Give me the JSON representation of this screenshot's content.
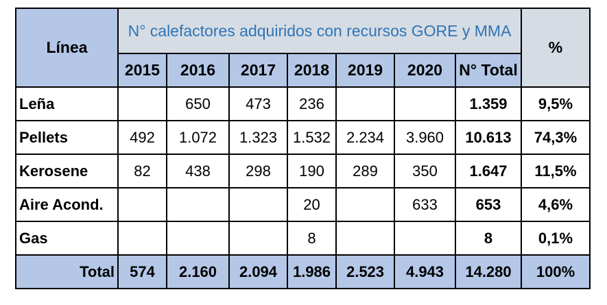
{
  "table": {
    "linea_header": "Línea",
    "title": "N° calefactores adquiridos con recursos  GORE y MMA",
    "pct_header": "%",
    "years": [
      "2015",
      "2016",
      "2017",
      "2018",
      "2019",
      "2020"
    ],
    "total_header": "N° Total",
    "rows": [
      {
        "label": "Leña",
        "values": [
          "",
          "650",
          "473",
          "236",
          "",
          ""
        ],
        "total": "1.359",
        "pct": "9,5%"
      },
      {
        "label": "Pellets",
        "values": [
          "492",
          "1.072",
          "1.323",
          "1.532",
          "2.234",
          "3.960"
        ],
        "total": "10.613",
        "pct": "74,3%"
      },
      {
        "label": "Kerosene",
        "values": [
          "82",
          "438",
          "298",
          "190",
          "289",
          "350"
        ],
        "total": "1.647",
        "pct": "11,5%"
      },
      {
        "label": "Aire Acond.",
        "values": [
          "",
          "",
          "",
          "20",
          "",
          "633"
        ],
        "total": "653",
        "pct": "4,6%"
      },
      {
        "label": "Gas",
        "values": [
          "",
          "",
          "",
          "8",
          "",
          ""
        ],
        "total": "8",
        "pct": "0,1%"
      }
    ],
    "total_row": {
      "label": "Total",
      "values": [
        "574",
        "2.160",
        "2.094",
        "1.986",
        "2.523",
        "4.943"
      ],
      "total": "14.280",
      "pct": "100%"
    },
    "colors": {
      "header_grey": "#d6dce4",
      "header_blue": "#b4c7e7",
      "title_text": "#2e75b6"
    }
  }
}
